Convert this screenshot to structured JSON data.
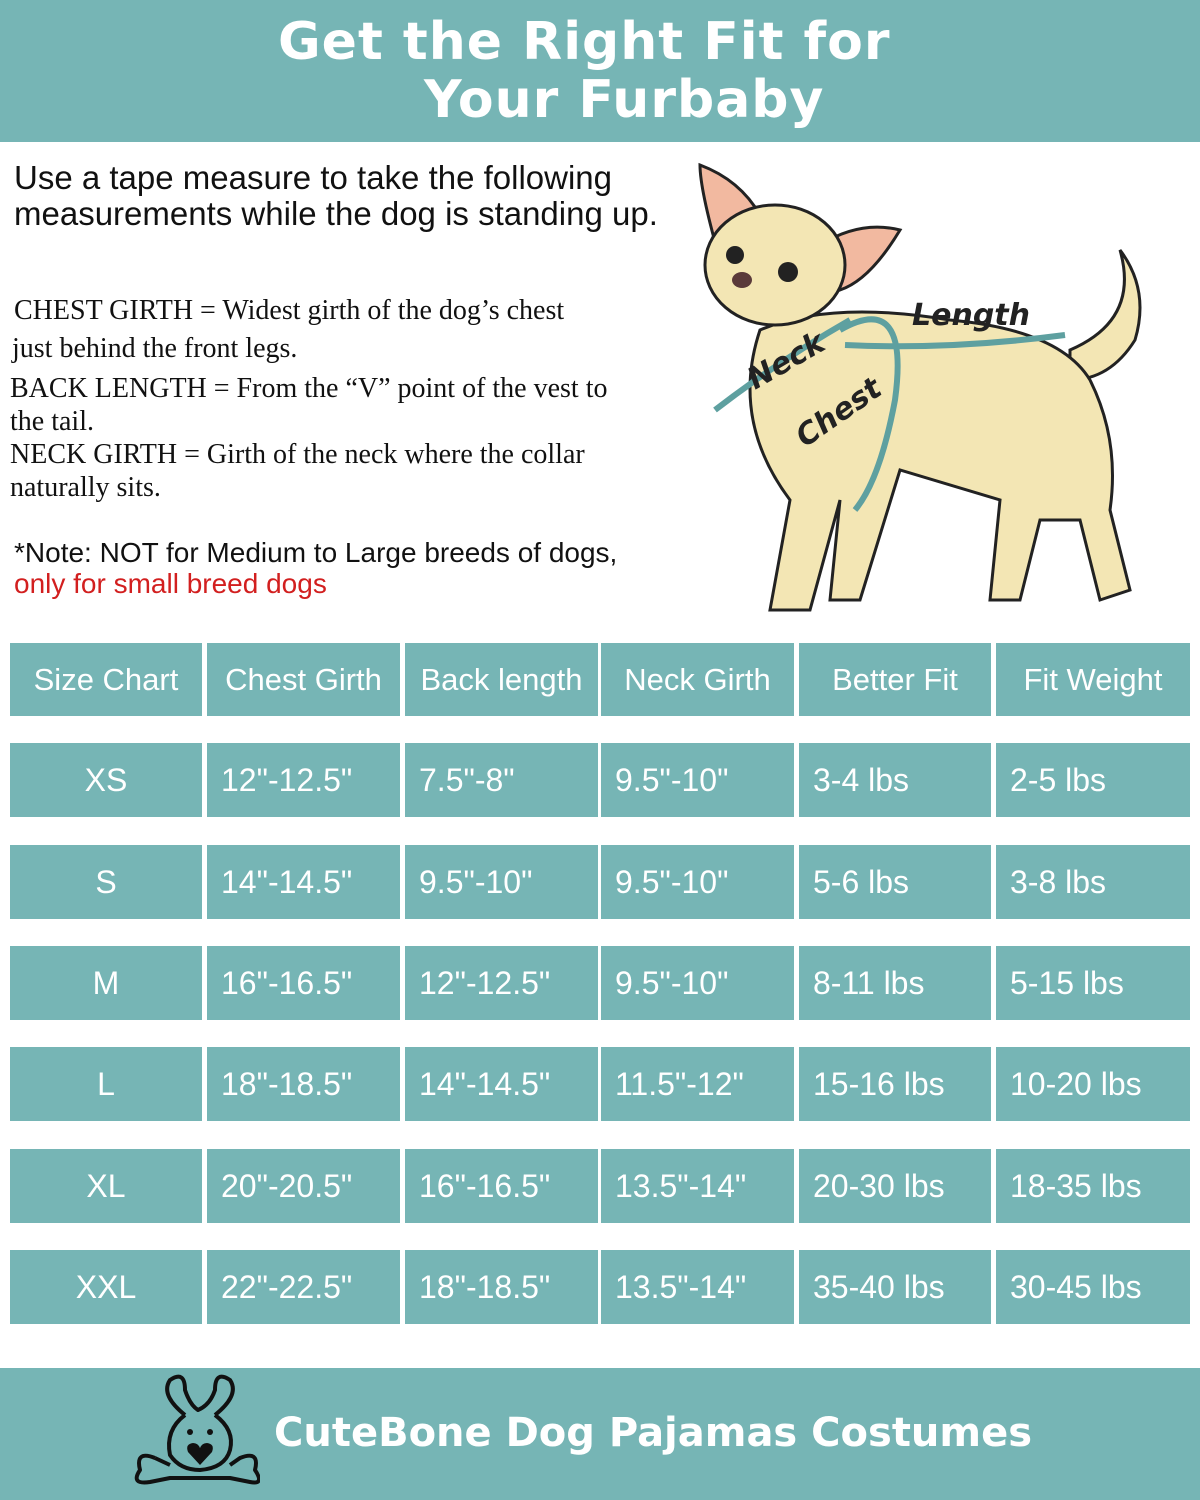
{
  "header": {
    "title_line1": "Get the Right Fit for",
    "title_line2": "Your Furbaby"
  },
  "intro": "Use a tape measure to take the following measurements while the dog is standing up.",
  "definitions": [
    {
      "line1": "CHEST GIRTH =  Widest girth of the dog’s chest",
      "line2": "just behind the front legs."
    },
    {
      "line1": "BACK LENGTH = From the “V” point of the vest to",
      "line2": "the tail."
    },
    {
      "line1": "NECK GIRTH = Girth of the neck where the collar",
      "line2": "naturally sits."
    }
  ],
  "note": {
    "text": "*Note: NOT for Medium to Large breeds of dogs,",
    "highlight": "only for small breed dogs"
  },
  "illustration": {
    "labels": {
      "neck": "Neck",
      "chest": "Chest",
      "length": "Length"
    }
  },
  "table": {
    "headers": [
      "Size Chart",
      "Chest Girth",
      "Back length",
      "Neck Girth",
      "Better Fit",
      "Fit Weight"
    ],
    "rows": [
      [
        "XS",
        "12\"-12.5\"",
        "7.5\"-8\"",
        "9.5\"-10\"",
        "3-4 lbs",
        "2-5 lbs"
      ],
      [
        "S",
        "14\"-14.5\"",
        "9.5\"-10\"",
        "9.5\"-10\"",
        "5-6 lbs",
        "3-8 lbs"
      ],
      [
        "M",
        "16\"-16.5\"",
        "12\"-12.5\"",
        "9.5\"-10\"",
        "8-11 lbs",
        "5-15 lbs"
      ],
      [
        "L",
        "18\"-18.5\"",
        "14\"-14.5\"",
        "11.5\"-12\"",
        "15-16 lbs",
        "10-20 lbs"
      ],
      [
        "XL",
        "20\"-20.5\"",
        "16\"-16.5\"",
        "13.5\"-14\"",
        "20-30 lbs",
        "18-35 lbs"
      ],
      [
        "XXL",
        "22\"-22.5\"",
        "18\"-18.5\"",
        "13.5\"-14\"",
        "35-40 lbs",
        "30-45 lbs"
      ]
    ]
  },
  "footer": {
    "brand": "CuteBone Dog Pajamas Costumes"
  },
  "colors": {
    "teal": "#76b5b5",
    "note_red": "#d21f1f"
  }
}
